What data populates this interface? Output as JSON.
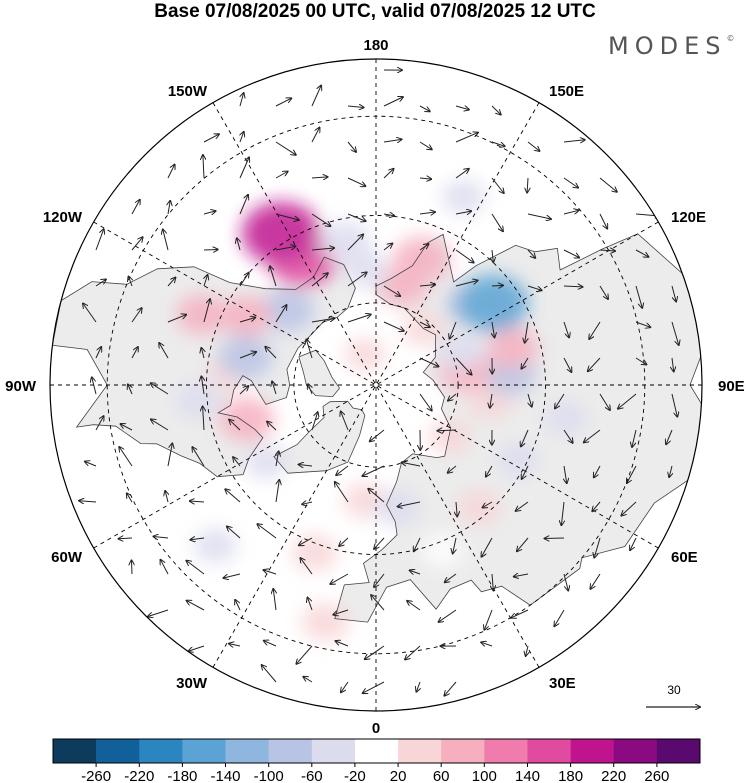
{
  "title": "Base 07/08/2025 00 UTC, valid 07/08/2025 12 UTC",
  "logo": {
    "text": "MODES",
    "mark": "©"
  },
  "projection": "north-polar-stereographic",
  "longitude_labels": {
    "top": "180",
    "bottom": "0",
    "left": "90W",
    "right": "90E",
    "upper_left": "150W",
    "upper_right": "150E",
    "left_upper": "120W",
    "right_upper": "120E",
    "left_lower": "60W",
    "right_lower": "60E",
    "lower_left": "30W",
    "lower_right": "30E"
  },
  "vector_reference": {
    "label": "30"
  },
  "colorbar": {
    "labels": [
      "-260",
      "-220",
      "-180",
      "-140",
      "-100",
      "-60",
      "-20",
      "20",
      "60",
      "100",
      "140",
      "180",
      "220",
      "260"
    ],
    "colors": [
      "#0d3b5c",
      "#12609a",
      "#2a85c0",
      "#5aa3d4",
      "#8fb6de",
      "#b9c3e4",
      "#dcdcef",
      "#ffffff",
      "#f8d5d7",
      "#f5afbf",
      "#ef7cad",
      "#e04a9f",
      "#c0148f",
      "#8b0a82",
      "#5a0a6e"
    ]
  },
  "anomalies": [
    {
      "lon": 165,
      "lat": 65,
      "value": 60
    },
    {
      "lon": 160,
      "lat": 58,
      "value": 90
    },
    {
      "lon": 130,
      "lat": 60,
      "value": -70
    },
    {
      "lon": 125,
      "lat": 56,
      "value": -150
    },
    {
      "lon": 155,
      "lat": 42,
      "value": -30
    },
    {
      "lon": -150,
      "lat": 55,
      "value": 150
    },
    {
      "lon": -148,
      "lat": 48,
      "value": 180
    },
    {
      "lon": -168,
      "lat": 55,
      "value": -60
    },
    {
      "lon": -175,
      "lat": 62,
      "value": -40
    },
    {
      "lon": -130,
      "lat": 62,
      "value": -80
    },
    {
      "lon": -118,
      "lat": 55,
      "value": 60
    },
    {
      "lon": -112,
      "lat": 46,
      "value": 60
    },
    {
      "lon": -95,
      "lat": 55,
      "value": 40
    },
    {
      "lon": -102,
      "lat": 58,
      "value": -80
    },
    {
      "lon": -75,
      "lat": 58,
      "value": 80
    },
    {
      "lon": -85,
      "lat": 48,
      "value": -40
    },
    {
      "lon": -55,
      "lat": 58,
      "value": -30
    },
    {
      "lon": -45,
      "lat": 38,
      "value": -30
    },
    {
      "lon": -20,
      "lat": 48,
      "value": 40
    },
    {
      "lon": -5,
      "lat": 62,
      "value": 40
    },
    {
      "lon": -12,
      "lat": 35,
      "value": 50
    },
    {
      "lon": 10,
      "lat": 60,
      "value": -40
    },
    {
      "lon": 22,
      "lat": 48,
      "value": -20
    },
    {
      "lon": 40,
      "lat": 52,
      "value": 40
    },
    {
      "lon": 55,
      "lat": 68,
      "value": 30
    },
    {
      "lon": 62,
      "lat": 52,
      "value": -30
    },
    {
      "lon": 82,
      "lat": 62,
      "value": 40
    },
    {
      "lon": 95,
      "lat": 58,
      "value": -80
    },
    {
      "lon": 100,
      "lat": 68,
      "value": 80
    },
    {
      "lon": 105,
      "lat": 56,
      "value": 60
    },
    {
      "lon": 112,
      "lat": 68,
      "value": -40
    },
    {
      "lon": 140,
      "lat": 72,
      "value": 30
    },
    {
      "lon": 80,
      "lat": 45,
      "value": -30
    },
    {
      "lon": -160,
      "lat": 82,
      "value": 20
    }
  ]
}
